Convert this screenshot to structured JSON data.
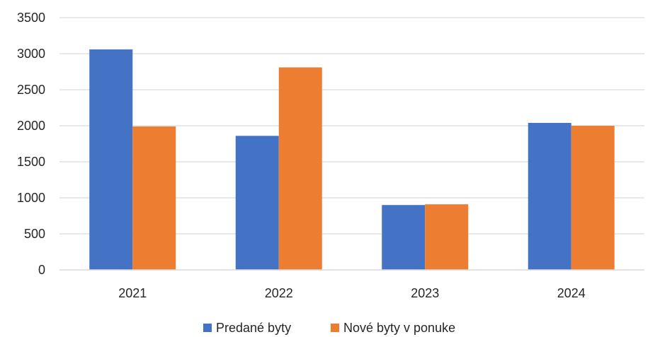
{
  "chart_data": {
    "type": "bar",
    "title": "",
    "xlabel": "",
    "ylabel": "",
    "categories": [
      "2021",
      "2022",
      "2023",
      "2024"
    ],
    "series": [
      {
        "name": "Predané byty",
        "color": "#4472C4",
        "values": [
          3060,
          1860,
          900,
          2040
        ]
      },
      {
        "name": "Nové byty v ponuke",
        "color": "#ED7D31",
        "values": [
          1990,
          2810,
          910,
          2000
        ]
      }
    ],
    "ylim": [
      0,
      3500
    ],
    "yticks": [
      0,
      500,
      1000,
      1500,
      2000,
      2500,
      3000,
      3500
    ],
    "grid": true,
    "legend_position": "bottom"
  }
}
